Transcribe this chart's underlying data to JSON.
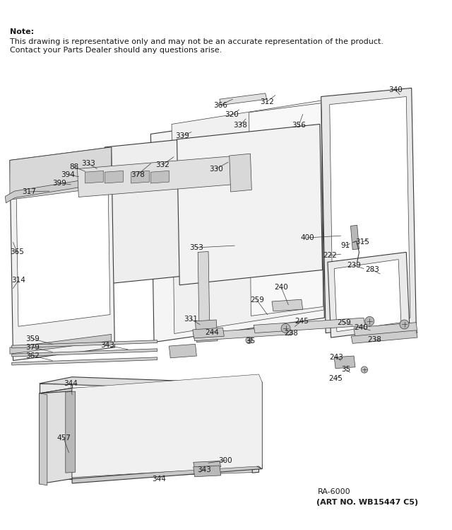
{
  "note_lines": [
    "Note:",
    "This drawing is representative only and may not be an accurate representation of the product.",
    "Contact your Parts Dealer should any questions arise."
  ],
  "footer_left": "RA-6000",
  "footer_right": "(ART NO. WB15447 C5)",
  "background_color": "#ffffff",
  "line_color": "#3a3a3a",
  "text_color": "#1a1a1a",
  "note_fontsize": 8.0,
  "label_fontsize": 7.5,
  "footer_fontsize": 8.0
}
